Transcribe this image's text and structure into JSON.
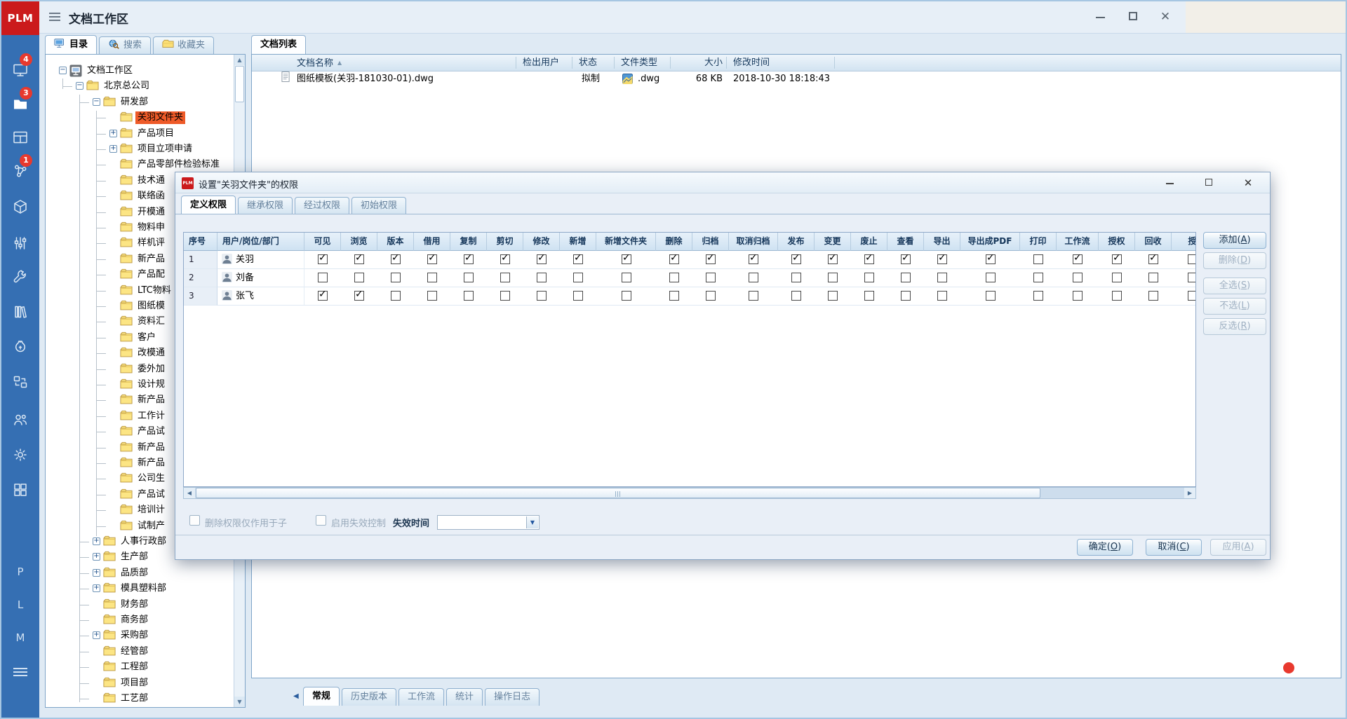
{
  "window": {
    "logo": "PLM",
    "title": "文档工作区"
  },
  "rail": {
    "badges": {
      "monitor": "4",
      "folder": "3",
      "share": "1"
    },
    "letters": [
      "P",
      "L",
      "M"
    ]
  },
  "left_tabs": [
    {
      "key": "catalog",
      "label": "目录",
      "active": true
    },
    {
      "key": "search",
      "label": "搜索",
      "active": false
    },
    {
      "key": "favorites",
      "label": "收藏夹",
      "active": false
    }
  ],
  "tree": [
    {
      "label": "文档工作区",
      "level": 0,
      "exp": "minus",
      "icon": "computer",
      "selected": false
    },
    {
      "label": "北京总公司",
      "level": 1,
      "exp": "minus",
      "icon": "folder",
      "selected": false
    },
    {
      "label": "研发部",
      "level": 2,
      "exp": "minus",
      "icon": "folder",
      "selected": false
    },
    {
      "label": "关羽文件夹",
      "level": 3,
      "exp": "none",
      "icon": "folder",
      "selected": true
    },
    {
      "label": "产品项目",
      "level": 3,
      "exp": "plus",
      "icon": "folder",
      "selected": false
    },
    {
      "label": "项目立项申请",
      "level": 3,
      "exp": "plus",
      "icon": "folder",
      "selected": false
    },
    {
      "label": "产品零部件检验标准",
      "level": 3,
      "exp": "none",
      "icon": "folder",
      "selected": false
    },
    {
      "label": "技术通",
      "level": 3,
      "exp": "none",
      "icon": "folder",
      "selected": false
    },
    {
      "label": "联络函",
      "level": 3,
      "exp": "none",
      "icon": "folder",
      "selected": false
    },
    {
      "label": "开模通",
      "level": 3,
      "exp": "none",
      "icon": "folder",
      "selected": false
    },
    {
      "label": "物料申",
      "level": 3,
      "exp": "none",
      "icon": "folder",
      "selected": false
    },
    {
      "label": "样机评",
      "level": 3,
      "exp": "none",
      "icon": "folder",
      "selected": false
    },
    {
      "label": "新产品",
      "level": 3,
      "exp": "none",
      "icon": "folder",
      "selected": false
    },
    {
      "label": "产品配",
      "level": 3,
      "exp": "none",
      "icon": "folder",
      "selected": false
    },
    {
      "label": "LTC物料",
      "level": 3,
      "exp": "none",
      "icon": "folder",
      "selected": false
    },
    {
      "label": "图纸模",
      "level": 3,
      "exp": "none",
      "icon": "folder",
      "selected": false
    },
    {
      "label": "资料汇",
      "level": 3,
      "exp": "none",
      "icon": "folder",
      "selected": false
    },
    {
      "label": "客户",
      "level": 3,
      "exp": "none",
      "icon": "folder",
      "selected": false
    },
    {
      "label": "改模通",
      "level": 3,
      "exp": "none",
      "icon": "folder",
      "selected": false
    },
    {
      "label": "委外加",
      "level": 3,
      "exp": "none",
      "icon": "folder",
      "selected": false
    },
    {
      "label": "设计规",
      "level": 3,
      "exp": "none",
      "icon": "folder",
      "selected": false
    },
    {
      "label": "新产品",
      "level": 3,
      "exp": "none",
      "icon": "folder",
      "selected": false
    },
    {
      "label": "工作计",
      "level": 3,
      "exp": "none",
      "icon": "folder",
      "selected": false
    },
    {
      "label": "产品试",
      "level": 3,
      "exp": "none",
      "icon": "folder",
      "selected": false
    },
    {
      "label": "新产品",
      "level": 3,
      "exp": "none",
      "icon": "folder",
      "selected": false
    },
    {
      "label": "新产品",
      "level": 3,
      "exp": "none",
      "icon": "folder",
      "selected": false
    },
    {
      "label": "公司生",
      "level": 3,
      "exp": "none",
      "icon": "folder",
      "selected": false
    },
    {
      "label": "产品试",
      "level": 3,
      "exp": "none",
      "icon": "folder",
      "selected": false
    },
    {
      "label": "培训计",
      "level": 3,
      "exp": "none",
      "icon": "folder",
      "selected": false
    },
    {
      "label": "试制产",
      "level": 3,
      "exp": "none",
      "icon": "folder",
      "selected": false
    },
    {
      "label": "人事行政部",
      "level": 2,
      "exp": "plus",
      "icon": "folder",
      "selected": false
    },
    {
      "label": "生产部",
      "level": 2,
      "exp": "plus",
      "icon": "folder",
      "selected": false
    },
    {
      "label": "品质部",
      "level": 2,
      "exp": "plus",
      "icon": "folder",
      "selected": false
    },
    {
      "label": "模具塑料部",
      "level": 2,
      "exp": "plus",
      "icon": "folder",
      "selected": false
    },
    {
      "label": "财务部",
      "level": 2,
      "exp": "none",
      "icon": "folder",
      "selected": false
    },
    {
      "label": "商务部",
      "level": 2,
      "exp": "none",
      "icon": "folder",
      "selected": false
    },
    {
      "label": "采购部",
      "level": 2,
      "exp": "plus",
      "icon": "folder",
      "selected": false
    },
    {
      "label": "经管部",
      "level": 2,
      "exp": "none",
      "icon": "folder",
      "selected": false
    },
    {
      "label": "工程部",
      "level": 2,
      "exp": "none",
      "icon": "folder",
      "selected": false
    },
    {
      "label": "项目部",
      "level": 2,
      "exp": "none",
      "icon": "folder",
      "selected": false
    },
    {
      "label": "工艺部",
      "level": 2,
      "exp": "none",
      "icon": "folder",
      "selected": false
    }
  ],
  "doc_list": {
    "tab": "文档列表",
    "columns": [
      "文档名称",
      "检出用户",
      "状态",
      "文件类型",
      "大小",
      "修改时间"
    ],
    "rows": [
      {
        "name": "图纸模板(关羽-181030-01).dwg",
        "checkout_user": "",
        "status": "拟制",
        "file_type": ".dwg",
        "size": "68 KB",
        "modified": "2018-10-30 18:18:43"
      }
    ]
  },
  "dialog": {
    "title": "设置\"关羽文件夹\"的权限",
    "tabs": [
      {
        "label": "定义权限",
        "active": true
      },
      {
        "label": "继承权限",
        "active": false
      },
      {
        "label": "经过权限",
        "active": false
      },
      {
        "label": "初始权限",
        "active": false
      }
    ],
    "table": {
      "index_col": "序号",
      "user_col": "用户/岗位/部门",
      "perm_columns": [
        "可见",
        "浏览",
        "版本",
        "借用",
        "复制",
        "剪切",
        "修改",
        "新增",
        "新增文件夹",
        "删除",
        "归档",
        "取消归档",
        "发布",
        "变更",
        "废止",
        "查看",
        "导出",
        "导出成PDF",
        "打印",
        "工作流",
        "授权",
        "回收",
        "授"
      ],
      "rows": [
        {
          "no": "1",
          "user": "关羽",
          "checks": [
            1,
            1,
            1,
            1,
            1,
            1,
            1,
            1,
            1,
            1,
            1,
            1,
            1,
            1,
            1,
            1,
            1,
            1,
            0,
            1,
            1,
            1
          ]
        },
        {
          "no": "2",
          "user": "刘备",
          "checks": [
            0,
            0,
            0,
            0,
            0,
            0,
            0,
            0,
            0,
            0,
            0,
            0,
            0,
            0,
            0,
            0,
            0,
            0,
            0,
            0,
            0,
            0
          ]
        },
        {
          "no": "3",
          "user": "张飞",
          "checks": [
            1,
            1,
            0,
            0,
            0,
            0,
            0,
            0,
            0,
            0,
            0,
            0,
            0,
            0,
            0,
            0,
            0,
            0,
            0,
            0,
            0,
            0
          ]
        }
      ]
    },
    "side_buttons": [
      {
        "text": "添加",
        "key": "A",
        "enabled": true
      },
      {
        "text": "删除",
        "key": "D",
        "enabled": false
      },
      {
        "text": "全选",
        "key": "S",
        "enabled": false
      },
      {
        "text": "不选",
        "key": "L",
        "enabled": false
      },
      {
        "text": "反选",
        "key": "R",
        "enabled": false
      }
    ],
    "footer": {
      "checkbox1": "删除权限仅作用于子",
      "checkbox2": "启用失效控制",
      "time_label": "失效时间",
      "combo_value": ""
    },
    "buttons": [
      {
        "text": "确定",
        "key": "O",
        "enabled": true
      },
      {
        "text": "取消",
        "key": "C",
        "enabled": true
      },
      {
        "text": "应用",
        "key": "A",
        "enabled": false
      }
    ]
  },
  "bottom_tabs": [
    {
      "label": "常规",
      "active": true
    },
    {
      "label": "历史版本",
      "active": false
    },
    {
      "label": "工作流",
      "active": false
    },
    {
      "label": "统计",
      "active": false
    },
    {
      "label": "操作日志",
      "active": false
    }
  ]
}
